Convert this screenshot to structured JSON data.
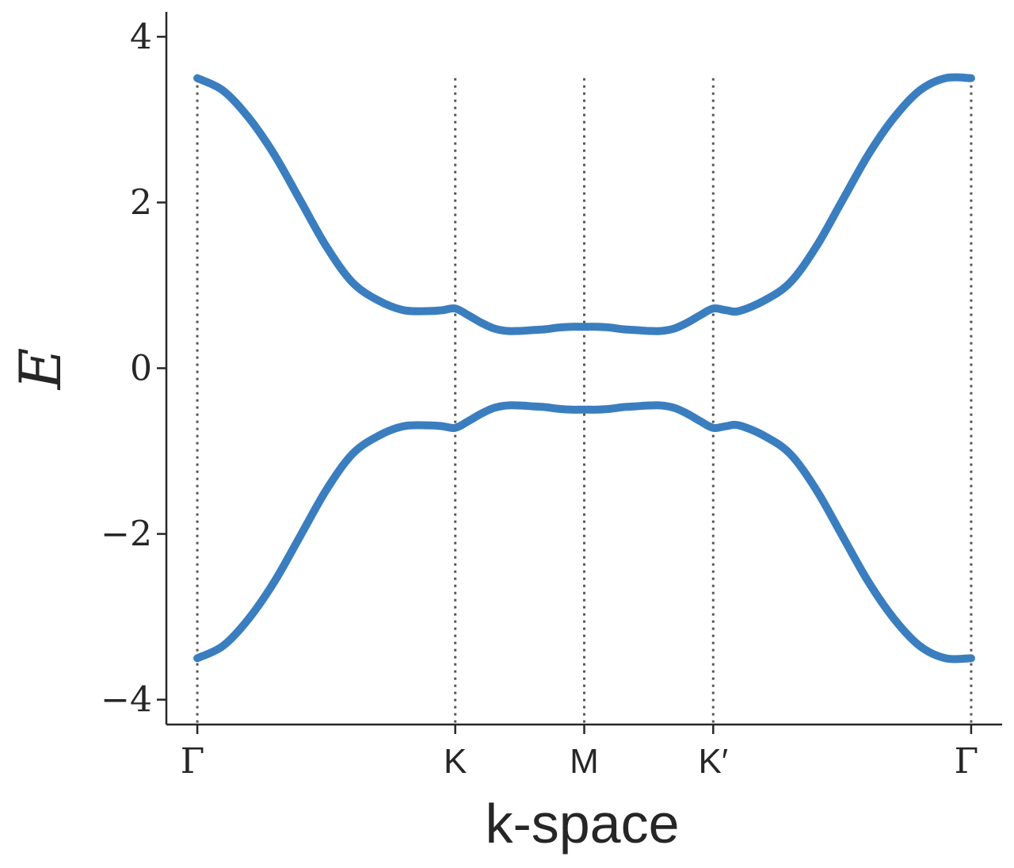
{
  "chart_data": {
    "type": "line",
    "xlabel": "k-space",
    "ylabel": "E",
    "ylim": [
      -4.3,
      4.3
    ],
    "yticks": [
      4,
      2,
      0,
      -2,
      -4
    ],
    "ytick_labels": [
      "4",
      "2",
      "0",
      "−2",
      "−4"
    ],
    "xtick_labels": [
      "Γ",
      "K",
      "M",
      "K′",
      "Γ"
    ],
    "xtick_positions": [
      0,
      1,
      1.5,
      2,
      3
    ],
    "xlim": [
      -0.12,
      3.12
    ],
    "grid": false,
    "legend": "none",
    "vertical_guides": [
      0,
      1,
      1.5,
      2,
      3
    ],
    "line_color": "#3a7ebf",
    "series": [
      {
        "x": [
          0,
          0.1,
          0.2,
          0.3,
          0.4,
          0.5,
          0.6,
          0.7,
          0.8,
          0.9,
          0.95,
          1.0,
          1.05,
          1.1,
          1.15,
          1.2,
          1.25,
          1.3,
          1.35,
          1.4,
          1.45,
          1.5,
          1.55,
          1.6,
          1.65,
          1.7,
          1.75,
          1.8,
          1.85,
          1.9,
          1.95,
          2.0,
          2.05,
          2.1,
          2.2,
          2.3,
          2.4,
          2.5,
          2.6,
          2.7,
          2.8,
          2.9,
          3.0
        ],
        "values": [
          3.5,
          3.35,
          3.02,
          2.57,
          2.02,
          1.47,
          1.04,
          0.82,
          0.7,
          0.69,
          0.7,
          0.72,
          0.64,
          0.55,
          0.48,
          0.45,
          0.45,
          0.46,
          0.47,
          0.49,
          0.5,
          0.5,
          0.5,
          0.49,
          0.47,
          0.46,
          0.45,
          0.45,
          0.48,
          0.55,
          0.64,
          0.72,
          0.7,
          0.69,
          0.82,
          1.04,
          1.47,
          2.02,
          2.57,
          3.02,
          3.35,
          3.5,
          3.5
        ]
      },
      {
        "x": [
          0,
          0.1,
          0.2,
          0.3,
          0.4,
          0.5,
          0.6,
          0.7,
          0.8,
          0.9,
          0.95,
          1.0,
          1.05,
          1.1,
          1.15,
          1.2,
          1.25,
          1.3,
          1.35,
          1.4,
          1.45,
          1.5,
          1.55,
          1.6,
          1.65,
          1.7,
          1.75,
          1.8,
          1.85,
          1.9,
          1.95,
          2.0,
          2.05,
          2.1,
          2.2,
          2.3,
          2.4,
          2.5,
          2.6,
          2.7,
          2.8,
          2.9,
          3.0
        ],
        "values": [
          -3.5,
          -3.35,
          -3.02,
          -2.57,
          -2.02,
          -1.47,
          -1.04,
          -0.82,
          -0.7,
          -0.69,
          -0.7,
          -0.72,
          -0.64,
          -0.55,
          -0.48,
          -0.45,
          -0.45,
          -0.46,
          -0.47,
          -0.49,
          -0.5,
          -0.5,
          -0.5,
          -0.49,
          -0.47,
          -0.46,
          -0.45,
          -0.45,
          -0.48,
          -0.55,
          -0.64,
          -0.72,
          -0.7,
          -0.69,
          -0.82,
          -1.04,
          -1.47,
          -2.02,
          -2.57,
          -3.02,
          -3.35,
          -3.5,
          -3.5
        ]
      }
    ]
  }
}
